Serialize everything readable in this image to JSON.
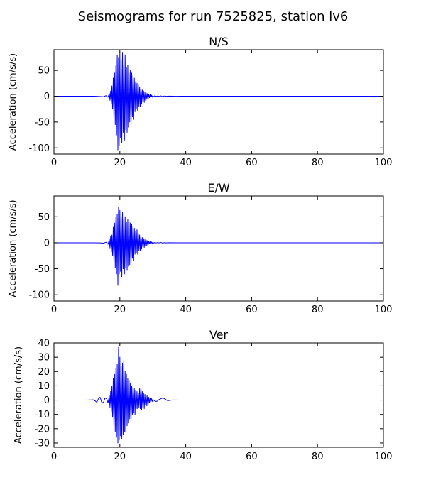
{
  "figure": {
    "title": "Seismograms for run 7525825, station lv6"
  },
  "chart_data": [
    {
      "type": "line",
      "title": "N/S",
      "xlabel": "",
      "ylabel": "Acceleration (cm/s/s)",
      "xlim": [
        0,
        100
      ],
      "ylim": [
        -112,
        90
      ],
      "xticks": [
        0,
        20,
        40,
        60,
        80,
        100
      ],
      "yticks": [
        -100,
        -50,
        0,
        50
      ],
      "grid": false,
      "color": "#0000ff",
      "series": [
        {
          "x": [
            0,
            12,
            14,
            15,
            15.8,
            16.4,
            16.8,
            17.0,
            17.2,
            17.4,
            17.6,
            17.8,
            18.0,
            18.2,
            18.4,
            18.6,
            18.8,
            19.0,
            19.2,
            19.4,
            19.6,
            19.8,
            20.0,
            20.2,
            20.4,
            20.6,
            20.8,
            21.0,
            21.2,
            21.4,
            21.6,
            21.8,
            22.0,
            22.2,
            22.4,
            22.6,
            22.8,
            23.0,
            23.2,
            23.4,
            23.6,
            23.8,
            24.0,
            24.2,
            24.4,
            24.6,
            24.8,
            25.0,
            25.2,
            25.4,
            25.6,
            25.8,
            26.0,
            26.2,
            26.4,
            26.6,
            26.8,
            27.0,
            27.2,
            27.4,
            27.6,
            27.8,
            28.0,
            28.2,
            28.4,
            28.6,
            28.8,
            29.0,
            29.2,
            29.4,
            29.6,
            29.8,
            30.0,
            30.3,
            30.6,
            31.0,
            31.5,
            32.0,
            32.5,
            33.0,
            33.5,
            34.0,
            35.0,
            37.0,
            40.0,
            100
          ],
          "y": [
            0,
            0,
            -0.5,
            -1,
            1,
            -2,
            5,
            -8,
            10,
            -15,
            20,
            -25,
            35,
            -40,
            45,
            -55,
            60,
            -75,
            80,
            -104,
            75,
            -95,
            85,
            -80,
            70,
            -90,
            85,
            -70,
            60,
            -85,
            80,
            -65,
            55,
            -70,
            60,
            -60,
            45,
            -50,
            50,
            -55,
            45,
            -40,
            42,
            -45,
            35,
            -30,
            28,
            -25,
            25,
            -28,
            22,
            -20,
            18,
            -20,
            15,
            -15,
            12,
            -10,
            10,
            -12,
            8,
            -8,
            6,
            -6,
            5,
            -5,
            4,
            -3,
            3,
            -2,
            2,
            -2,
            1,
            -1,
            0.8,
            -0.5,
            0.3,
            -0.3,
            0.6,
            -0.8,
            0.4,
            -0.2,
            0.1,
            -0.1,
            0,
            0
          ]
        }
      ]
    },
    {
      "type": "line",
      "title": "E/W",
      "xlabel": "",
      "ylabel": "Acceleration (cm/s/s)",
      "xlim": [
        0,
        100
      ],
      "ylim": [
        -112,
        90
      ],
      "xticks": [
        0,
        20,
        40,
        60,
        80,
        100
      ],
      "yticks": [
        -100,
        -50,
        0,
        50
      ],
      "grid": false,
      "color": "#0000ff",
      "series": [
        {
          "x": [
            0,
            12,
            14,
            15,
            15.8,
            16.4,
            16.8,
            17.0,
            17.2,
            17.4,
            17.6,
            17.8,
            18.0,
            18.2,
            18.4,
            18.6,
            18.8,
            19.0,
            19.2,
            19.4,
            19.6,
            19.8,
            20.0,
            20.2,
            20.4,
            20.6,
            20.8,
            21.0,
            21.2,
            21.4,
            21.6,
            21.8,
            22.0,
            22.2,
            22.4,
            22.6,
            22.8,
            23.0,
            23.2,
            23.4,
            23.6,
            23.8,
            24.0,
            24.2,
            24.4,
            24.6,
            24.8,
            25.0,
            25.2,
            25.4,
            25.6,
            25.8,
            26.0,
            26.2,
            26.4,
            26.6,
            26.8,
            27.0,
            27.2,
            27.4,
            27.6,
            27.8,
            28.0,
            28.2,
            28.4,
            28.6,
            28.8,
            29.0,
            29.2,
            29.4,
            29.6,
            29.8,
            30.0,
            30.3,
            30.6,
            31.0,
            31.5,
            32.0,
            32.5,
            33.0,
            33.5,
            34.0,
            35.0,
            37.0,
            40.0,
            100
          ],
          "y": [
            0,
            0,
            -0.3,
            -0.8,
            1,
            -3,
            6,
            -10,
            12,
            -18,
            15,
            -25,
            30,
            -35,
            38,
            -48,
            50,
            -60,
            55,
            -82,
            68,
            -60,
            62,
            -55,
            50,
            -65,
            58,
            -50,
            45,
            -60,
            50,
            -48,
            40,
            -52,
            45,
            -45,
            40,
            -42,
            38,
            -40,
            35,
            -30,
            32,
            -35,
            28,
            -22,
            22,
            -20,
            25,
            -22,
            18,
            -15,
            15,
            -16,
            12,
            -12,
            10,
            -8,
            8,
            -9,
            6,
            -6,
            5,
            -5,
            4,
            -4,
            3,
            -2,
            2,
            -2,
            1.5,
            -1,
            1,
            -0.6,
            0.4,
            -0.3,
            0.2,
            -0.2,
            0.5,
            -0.7,
            0.3,
            -0.2,
            0.1,
            -0.1,
            0,
            0
          ]
        }
      ]
    },
    {
      "type": "line",
      "title": "Ver",
      "xlabel": "",
      "ylabel": "Acceleration (cm/s/s)",
      "xlim": [
        0,
        100
      ],
      "ylim": [
        -33,
        40
      ],
      "xticks": [
        0,
        20,
        40,
        60,
        80,
        100
      ],
      "yticks": [
        -30,
        -20,
        -10,
        0,
        10,
        20,
        30,
        40
      ],
      "grid": false,
      "color": "#0000ff",
      "series": [
        {
          "x": [
            0,
            10,
            12,
            12.5,
            13.0,
            13.5,
            14.0,
            14.5,
            15.0,
            15.5,
            16.0,
            16.4,
            16.8,
            17.0,
            17.2,
            17.4,
            17.6,
            17.8,
            18.0,
            18.2,
            18.4,
            18.6,
            18.8,
            19.0,
            19.2,
            19.4,
            19.6,
            19.8,
            20.0,
            20.2,
            20.4,
            20.6,
            20.8,
            21.0,
            21.2,
            21.4,
            21.6,
            21.8,
            22.0,
            22.2,
            22.4,
            22.6,
            22.8,
            23.0,
            23.2,
            23.4,
            23.6,
            23.8,
            24.0,
            24.2,
            24.4,
            24.6,
            24.8,
            25.0,
            25.2,
            25.4,
            25.6,
            25.8,
            26.0,
            26.2,
            26.4,
            26.6,
            26.8,
            27.0,
            27.2,
            27.4,
            27.6,
            27.8,
            28.0,
            28.2,
            28.4,
            28.6,
            28.8,
            29.0,
            29.2,
            29.4,
            29.6,
            29.8,
            30.0,
            30.5,
            31.0,
            31.5,
            32.0,
            32.5,
            33.0,
            33.5,
            34.0,
            34.5,
            35.0,
            36.0,
            38.0,
            40.0,
            100
          ],
          "y": [
            0,
            0,
            0.2,
            -0.5,
            -1.5,
            1,
            2,
            -1.5,
            -1.8,
            1.5,
            1,
            -2,
            3,
            -5,
            6,
            -8,
            10,
            -12,
            15,
            -18,
            18,
            -22,
            22,
            -26,
            25,
            -30,
            37,
            -28,
            30,
            -25,
            24,
            -27,
            26,
            -24,
            28,
            -22,
            20,
            -22,
            18,
            -18,
            15,
            -16,
            14,
            -13,
            12,
            -14,
            10,
            -10,
            9,
            -9,
            8,
            -10,
            7,
            -6,
            6,
            -6,
            5,
            -5,
            8,
            -6,
            9,
            -7,
            6,
            -5,
            5,
            -6,
            4,
            -3,
            3,
            -4,
            3,
            -3,
            2,
            -2,
            1.5,
            -1,
            1,
            -1,
            0.5,
            -0.5,
            -1,
            -0.5,
            0.5,
            1,
            1.5,
            1,
            0.3,
            -0.4,
            -0.2,
            0.1,
            0,
            0,
            0
          ]
        }
      ]
    }
  ]
}
